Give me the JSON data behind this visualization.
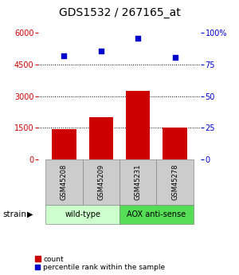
{
  "title": "GDS1532 / 267165_at",
  "samples": [
    "GSM45208",
    "GSM45209",
    "GSM45231",
    "GSM45278"
  ],
  "counts": [
    1450,
    2000,
    3250,
    1500
  ],
  "percentiles": [
    82,
    86,
    96,
    81
  ],
  "groups": [
    {
      "label": "wild-type",
      "samples": [
        0,
        1
      ],
      "color": "#ccffcc"
    },
    {
      "label": "AOX anti-sense",
      "samples": [
        2,
        3
      ],
      "color": "#55dd55"
    }
  ],
  "group_label": "strain",
  "bar_color": "#cc0000",
  "scatter_color": "#0000cc",
  "left_yaxis_color": "#cc0000",
  "right_yaxis_color": "#0000cc",
  "ylim_left": [
    0,
    6000
  ],
  "ylim_right": [
    0,
    100
  ],
  "left_yticks": [
    0,
    1500,
    3000,
    4500,
    6000
  ],
  "right_yticks": [
    0,
    25,
    50,
    75,
    100
  ],
  "right_yticklabels": [
    "0",
    "25",
    "50",
    "75",
    "100%"
  ],
  "hlines": [
    1500,
    3000,
    4500
  ],
  "bar_width": 0.65,
  "background_color": "#ffffff",
  "sample_box_color": "#cccccc",
  "title_fontsize": 10,
  "tick_fontsize": 7,
  "label_fontsize": 7,
  "legend_fontsize": 6.5
}
